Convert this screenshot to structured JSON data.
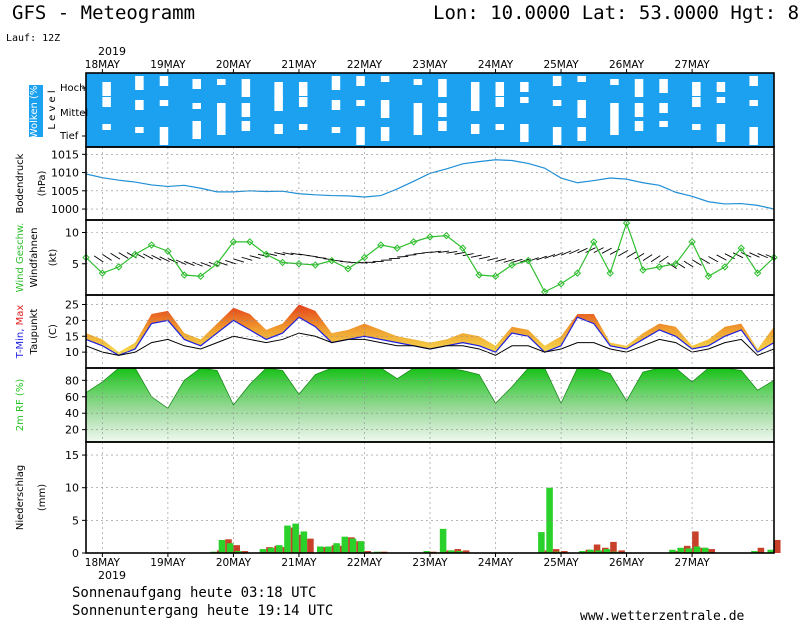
{
  "header": {
    "title": "GFS - Meteogramm",
    "location": "Lon: 10.0000 Lat: 53.0000 Hgt: 8",
    "run": "Lauf: 12Z"
  },
  "footer": {
    "sunrise": "Sonnenaufgang heute 03:18 UTC",
    "sunset": "Sonnenuntergang heute 19:14 UTC",
    "source": "www.wetterzentrale.de"
  },
  "colors": {
    "cloud_blue": "#1ba1f0",
    "pressure": "#1f8fd6",
    "wind": "#2fbf2f",
    "tmin": "#1e1ee0",
    "tmax": "#e02020",
    "rh": "#23c423",
    "precip_green": "#2bd12b",
    "precip_red": "#c8402a"
  },
  "chart_data": {
    "type": "meteogram",
    "year_top": "2019",
    "year_bottom": "2019",
    "dates": [
      "18MAY",
      "19MAY",
      "20MAY",
      "21MAY",
      "22MAY",
      "23MAY",
      "24MAY",
      "25MAY",
      "26MAY",
      "27MAY"
    ],
    "panels": [
      {
        "type": "heatmap",
        "id": "clouds",
        "ylabel": "Wolken (%)",
        "level_label": "Level",
        "levels": [
          "Hoch",
          "Mittel",
          "Tief"
        ]
      },
      {
        "type": "line",
        "id": "pressure",
        "ylabel": "Bodendruck",
        "unit": "(hPa)",
        "ylim": [
          997,
          1017
        ],
        "yticks": [
          1000,
          1005,
          1010,
          1015
        ],
        "x": [
          0,
          6,
          12,
          18,
          24,
          30,
          36,
          42,
          48,
          54,
          60,
          66,
          72,
          78,
          84,
          90,
          96,
          102,
          108,
          114,
          120,
          126,
          132,
          138,
          144,
          150,
          156,
          162,
          168,
          174,
          180,
          186,
          192,
          198,
          204,
          210,
          216,
          222,
          228,
          234,
          240,
          246,
          252
        ],
        "values": [
          1009.6,
          1008.6,
          1007.9,
          1007.4,
          1006.6,
          1006.2,
          1006.5,
          1005.7,
          1004.7,
          1004.7,
          1005.0,
          1004.8,
          1004.9,
          1004.2,
          1003.9,
          1003.7,
          1003.6,
          1003.3,
          1003.7,
          1005.5,
          1007.6,
          1009.8,
          1011.0,
          1012.4,
          1013.0,
          1013.5,
          1013.3,
          1012.5,
          1011.2,
          1008.5,
          1007.2,
          1007.8,
          1008.5,
          1008.2,
          1007.2,
          1006.5,
          1004.6,
          1003.5,
          1002.0,
          1001.4,
          1001.5,
          1001.0,
          1000.0
        ]
      },
      {
        "type": "line",
        "id": "wind",
        "ylabel_a": "Wind Geschw.",
        "ylabel_b": "Windfahnen",
        "unit": "(kt)",
        "ylim": [
          0,
          12
        ],
        "yticks": [
          5,
          10
        ],
        "x": [
          0,
          6,
          12,
          18,
          24,
          30,
          36,
          42,
          48,
          54,
          60,
          66,
          72,
          78,
          84,
          90,
          96,
          102,
          108,
          114,
          120,
          126,
          132,
          138,
          144,
          150,
          156,
          162,
          168,
          174,
          180,
          186,
          192,
          198,
          204,
          210,
          216,
          222,
          228,
          234,
          240,
          246,
          252
        ],
        "values": [
          6,
          3.5,
          4.5,
          6.5,
          8,
          7,
          3.2,
          3,
          5,
          8.5,
          8.5,
          6.5,
          5.2,
          5,
          4.8,
          5.5,
          4.2,
          6,
          8,
          7.5,
          8.5,
          9.3,
          9.5,
          7.5,
          3.2,
          3,
          4.8,
          5.5,
          0.5,
          1.8,
          3.5,
          8.5,
          3.5,
          11.5,
          4,
          4.5,
          5,
          8.5,
          3,
          4.5,
          7.5,
          3.5,
          6
        ]
      },
      {
        "type": "area",
        "id": "temperature",
        "ylabel_a": "T-Min,",
        "ylabel_b": "Max",
        "ylabel_c": "Taupunkt",
        "unit": "(C)",
        "ylim": [
          5,
          28
        ],
        "yticks": [
          10,
          15,
          20,
          25
        ],
        "x": [
          0,
          6,
          12,
          18,
          24,
          30,
          36,
          42,
          48,
          54,
          60,
          66,
          72,
          78,
          84,
          90,
          96,
          102,
          108,
          114,
          120,
          126,
          132,
          138,
          144,
          150,
          156,
          162,
          168,
          174,
          180,
          186,
          192,
          198,
          204,
          210,
          216,
          222,
          228,
          234,
          240,
          246,
          252
        ],
        "tmin": [
          14,
          12,
          9,
          11,
          19,
          20,
          14,
          12,
          16,
          20,
          17,
          14,
          16,
          21,
          18,
          13,
          14,
          15,
          14,
          13,
          12,
          11,
          12,
          13,
          12,
          10,
          16,
          15,
          10,
          12,
          21,
          19,
          12,
          11,
          14,
          17,
          15,
          11,
          12,
          15,
          17,
          10,
          13
        ],
        "tmax": [
          16,
          14,
          10,
          13,
          22,
          23,
          16,
          14,
          19,
          24,
          22,
          17,
          19,
          25,
          23,
          16,
          17,
          19,
          17,
          15,
          14,
          13,
          14,
          16,
          15,
          12,
          18,
          17,
          12,
          15,
          22,
          22,
          13,
          12,
          16,
          19,
          18,
          12,
          14,
          18,
          19,
          11,
          18
        ],
        "dewpoint": [
          12,
          10,
          9,
          10,
          13,
          14,
          12,
          11,
          13,
          15,
          14,
          13,
          14,
          16,
          15,
          13,
          14,
          14,
          13,
          12,
          12,
          11,
          12,
          12,
          11,
          9,
          12,
          12,
          10,
          11,
          13,
          13,
          11,
          10,
          12,
          14,
          13,
          10,
          11,
          13,
          14,
          9,
          11
        ]
      },
      {
        "type": "area",
        "id": "rh",
        "ylabel": "2m RF (%)",
        "ylim": [
          5,
          95
        ],
        "yticks": [
          20,
          40,
          60,
          80
        ],
        "x": [
          0,
          6,
          12,
          18,
          24,
          30,
          36,
          42,
          48,
          54,
          60,
          66,
          72,
          78,
          84,
          90,
          96,
          102,
          108,
          114,
          120,
          126,
          132,
          138,
          144,
          150,
          156,
          162,
          168,
          174,
          180,
          186,
          192,
          198,
          204,
          210,
          216,
          222,
          228,
          234,
          240,
          246,
          252
        ],
        "values": [
          65,
          78,
          95,
          95,
          60,
          46,
          80,
          95,
          92,
          50,
          75,
          95,
          92,
          63,
          87,
          95,
          95,
          95,
          95,
          82,
          95,
          95,
          95,
          92,
          87,
          52,
          72,
          95,
          95,
          52,
          95,
          95,
          88,
          55,
          90,
          95,
          95,
          78,
          95,
          95,
          92,
          68,
          80
        ]
      },
      {
        "type": "bar",
        "id": "precip",
        "ylabel": "Niederschlag",
        "unit": "(mm)",
        "ylim": [
          0,
          17
        ],
        "yticks": [
          0,
          5,
          10,
          15
        ],
        "bars": [
          {
            "x": 48,
            "green": 0.2,
            "red": 0.4
          },
          {
            "x": 51,
            "green": 2,
            "red": 2.1
          },
          {
            "x": 54,
            "green": 1.5,
            "red": 1.2
          },
          {
            "x": 57,
            "green": 0.3,
            "red": 0.3
          },
          {
            "x": 66,
            "green": 0.6,
            "red": 0.9
          },
          {
            "x": 69,
            "green": 0.8,
            "red": 1.1
          },
          {
            "x": 72,
            "green": 1.2,
            "red": 0.9
          },
          {
            "x": 75,
            "green": 4.2,
            "red": 3.9
          },
          {
            "x": 78,
            "green": 4.5,
            "red": 2.8
          },
          {
            "x": 81,
            "green": 3.3,
            "red": 2.2
          },
          {
            "x": 87,
            "green": 1,
            "red": 0.9
          },
          {
            "x": 90,
            "green": 1,
            "red": 1.2
          },
          {
            "x": 93,
            "green": 1.5,
            "red": 1.1
          },
          {
            "x": 96,
            "green": 2.5,
            "red": 2.4
          },
          {
            "x": 99,
            "green": 2.2,
            "red": 1.8
          },
          {
            "x": 102,
            "green": 1.8,
            "red": 0.3
          },
          {
            "x": 108,
            "green": 0.2,
            "red": 0.2
          },
          {
            "x": 126,
            "green": 0.3,
            "red": 0.2
          },
          {
            "x": 132,
            "green": 3.7,
            "red": 0.4
          },
          {
            "x": 135,
            "green": 0.4,
            "red": 0.6
          },
          {
            "x": 138,
            "green": 0.3,
            "red": 0.4
          },
          {
            "x": 168,
            "green": 3.2,
            "red": 0.4
          },
          {
            "x": 171,
            "green": 10,
            "red": 0.6
          },
          {
            "x": 174,
            "green": 0.2,
            "red": 0.3
          },
          {
            "x": 183,
            "green": 0.3,
            "red": 0.5
          },
          {
            "x": 186,
            "green": 0.5,
            "red": 1.3
          },
          {
            "x": 189,
            "green": 0.4,
            "red": 0.8
          },
          {
            "x": 192,
            "green": 0.6,
            "red": 1.7
          },
          {
            "x": 195,
            "green": 0.2,
            "red": 0.4
          },
          {
            "x": 216,
            "green": 0.5,
            "red": 0.3
          },
          {
            "x": 219,
            "green": 0.8,
            "red": 1.1
          },
          {
            "x": 222,
            "green": 0.7,
            "red": 3.3
          },
          {
            "x": 225,
            "green": 1.0,
            "red": 0.8
          },
          {
            "x": 228,
            "green": 0.8,
            "red": 0.6
          },
          {
            "x": 246,
            "green": 0.3,
            "red": 0.8
          },
          {
            "x": 252,
            "green": 0.5,
            "red": 2
          }
        ]
      }
    ]
  }
}
